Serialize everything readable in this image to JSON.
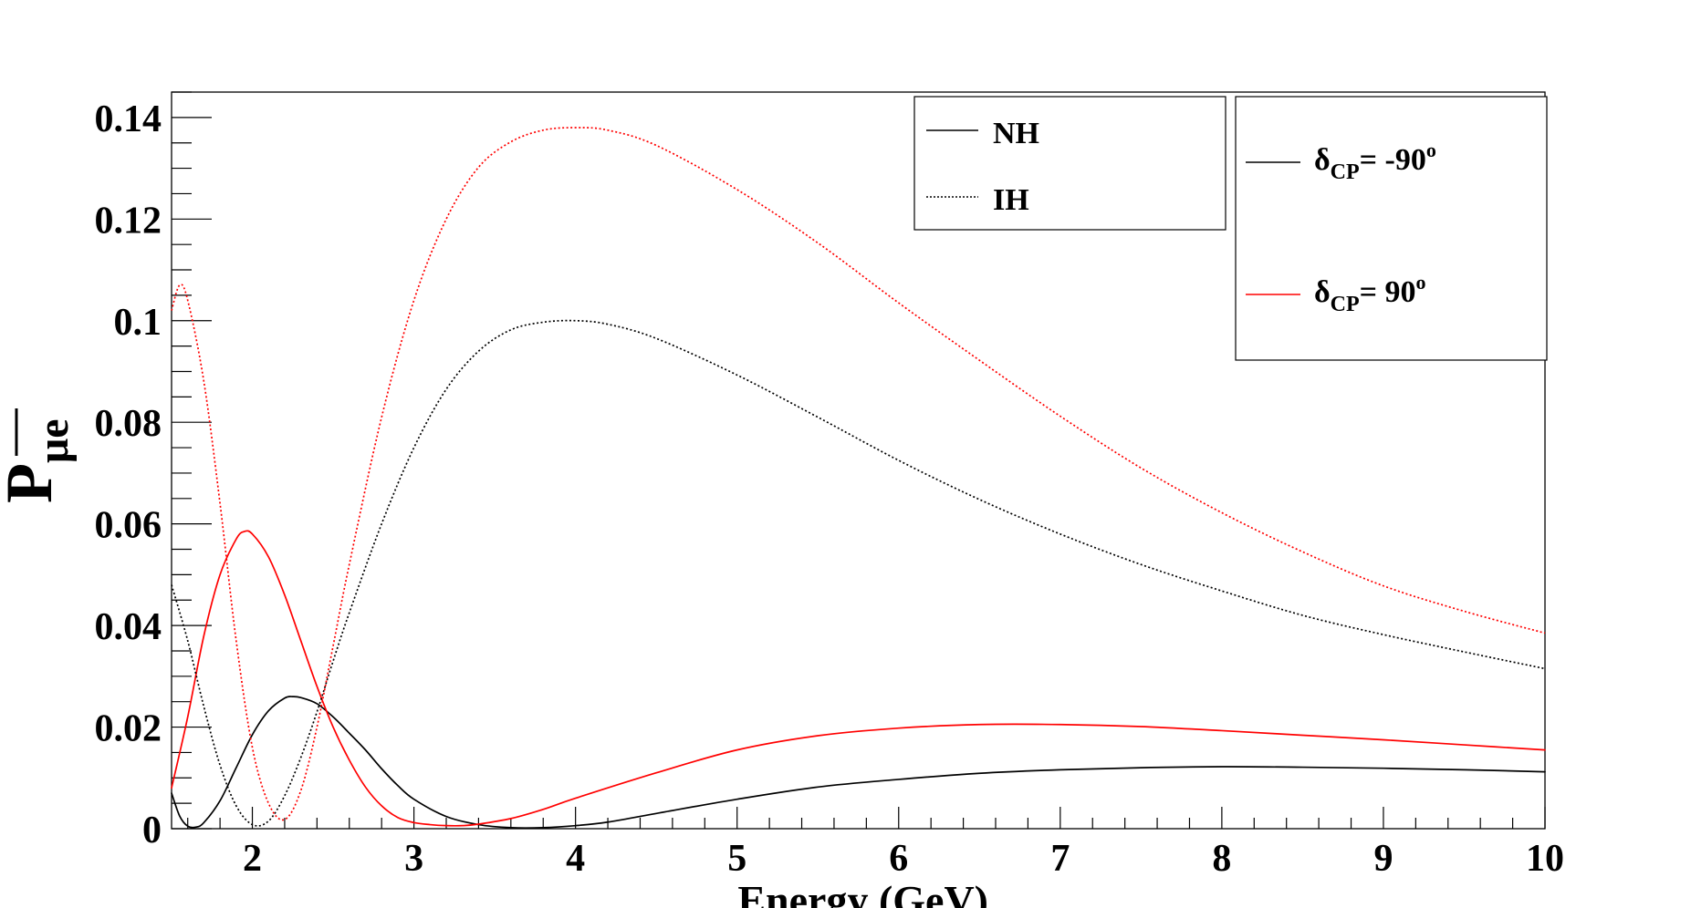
{
  "chart_data": {
    "type": "line",
    "title": "",
    "xlabel": "Energy (GeV)",
    "ylabel": {
      "main": "P",
      "sub": "μe"
    },
    "xlim": [
      1.5,
      10
    ],
    "ylim": [
      0,
      0.145
    ],
    "xticks": [
      2,
      3,
      4,
      5,
      6,
      7,
      8,
      9,
      10
    ],
    "xtick_labels": [
      "2",
      "3",
      "4",
      "5",
      "6",
      "7",
      "8",
      "9",
      "10"
    ],
    "yticks": [
      0,
      0.02,
      0.04,
      0.06,
      0.08,
      0.1,
      0.12,
      0.14
    ],
    "ytick_labels": [
      "0",
      "0.02",
      "0.04",
      "0.06",
      "0.08",
      "0.1",
      "0.12",
      "0.14"
    ],
    "grid": false,
    "legend_hierarchy": {
      "position": "top-center",
      "entries": [
        {
          "label": "NH",
          "style": "solid",
          "color": "#000000"
        },
        {
          "label": "IH",
          "style": "dotted",
          "color": "#000000"
        }
      ]
    },
    "legend_cp": {
      "position": "top-right",
      "entries": [
        {
          "label_main": "δ",
          "label_sub": "CP",
          "label_rest": "= -90",
          "label_sup": "o",
          "style": "solid",
          "color": "#000000"
        },
        {
          "label_main": "δ",
          "label_sub": "CP",
          "label_rest": "= 90",
          "label_sup": "o",
          "style": "solid",
          "color": "#ff0000"
        }
      ]
    },
    "series": [
      {
        "name": "NH δCP=-90",
        "color": "#000000",
        "style": "solid",
        "points": [
          [
            1.5,
            0.007
          ],
          [
            1.55,
            0.0025
          ],
          [
            1.6,
            0.0005
          ],
          [
            1.65,
            0.0003
          ],
          [
            1.7,
            0.0012
          ],
          [
            1.8,
            0.0055
          ],
          [
            1.9,
            0.012
          ],
          [
            2.0,
            0.0185
          ],
          [
            2.1,
            0.0232
          ],
          [
            2.2,
            0.0257
          ],
          [
            2.25,
            0.026
          ],
          [
            2.3,
            0.0258
          ],
          [
            2.4,
            0.0246
          ],
          [
            2.5,
            0.022
          ],
          [
            2.6,
            0.0188
          ],
          [
            2.7,
            0.0155
          ],
          [
            2.8,
            0.0118
          ],
          [
            2.9,
            0.0085
          ],
          [
            3.0,
            0.0058
          ],
          [
            3.2,
            0.0024
          ],
          [
            3.4,
            0.0008
          ],
          [
            3.6,
            0.0002
          ],
          [
            3.8,
            0.0002
          ],
          [
            4.0,
            0.0006
          ],
          [
            4.2,
            0.0013
          ],
          [
            4.5,
            0.003
          ],
          [
            5.0,
            0.0058
          ],
          [
            5.5,
            0.0082
          ],
          [
            6.0,
            0.0097
          ],
          [
            6.5,
            0.0109
          ],
          [
            7.0,
            0.0116
          ],
          [
            7.5,
            0.012
          ],
          [
            8.0,
            0.0122
          ],
          [
            8.5,
            0.0121
          ],
          [
            9.0,
            0.0119
          ],
          [
            9.5,
            0.0116
          ],
          [
            10.0,
            0.0112
          ]
        ]
      },
      {
        "name": "NH δCP=90",
        "color": "#ff0000",
        "style": "solid",
        "points": [
          [
            1.5,
            0.008
          ],
          [
            1.6,
            0.022
          ],
          [
            1.7,
            0.038
          ],
          [
            1.8,
            0.05
          ],
          [
            1.9,
            0.057
          ],
          [
            1.95,
            0.0585
          ],
          [
            2.0,
            0.058
          ],
          [
            2.1,
            0.0535
          ],
          [
            2.2,
            0.046
          ],
          [
            2.3,
            0.037
          ],
          [
            2.4,
            0.028
          ],
          [
            2.5,
            0.02
          ],
          [
            2.6,
            0.0135
          ],
          [
            2.7,
            0.0082
          ],
          [
            2.8,
            0.0045
          ],
          [
            2.9,
            0.0022
          ],
          [
            3.0,
            0.0012
          ],
          [
            3.1,
            0.0008
          ],
          [
            3.2,
            0.0006
          ],
          [
            3.3,
            0.0006
          ],
          [
            3.4,
            0.0009
          ],
          [
            3.6,
            0.002
          ],
          [
            3.8,
            0.0038
          ],
          [
            4.0,
            0.006
          ],
          [
            4.5,
            0.011
          ],
          [
            5.0,
            0.0155
          ],
          [
            5.5,
            0.0183
          ],
          [
            6.0,
            0.0198
          ],
          [
            6.5,
            0.0205
          ],
          [
            7.0,
            0.0205
          ],
          [
            7.5,
            0.0201
          ],
          [
            8.0,
            0.0193
          ],
          [
            8.5,
            0.0184
          ],
          [
            9.0,
            0.0175
          ],
          [
            9.5,
            0.0165
          ],
          [
            10.0,
            0.0155
          ]
        ]
      },
      {
        "name": "IH δCP=-90",
        "color": "#000000",
        "style": "dotted",
        "points": [
          [
            1.5,
            0.048
          ],
          [
            1.6,
            0.037
          ],
          [
            1.7,
            0.024
          ],
          [
            1.8,
            0.0125
          ],
          [
            1.9,
            0.0045
          ],
          [
            2.0,
            0.0008
          ],
          [
            2.1,
            0.0015
          ],
          [
            2.2,
            0.0065
          ],
          [
            2.3,
            0.014
          ],
          [
            2.4,
            0.023
          ],
          [
            2.5,
            0.033
          ],
          [
            2.6,
            0.0425
          ],
          [
            2.8,
            0.06
          ],
          [
            3.0,
            0.075
          ],
          [
            3.2,
            0.0865
          ],
          [
            3.4,
            0.094
          ],
          [
            3.6,
            0.0982
          ],
          [
            3.8,
            0.0997
          ],
          [
            4.0,
            0.1
          ],
          [
            4.2,
            0.0993
          ],
          [
            4.5,
            0.0965
          ],
          [
            5.0,
            0.0893
          ],
          [
            5.5,
            0.081
          ],
          [
            6.0,
            0.0725
          ],
          [
            6.5,
            0.0648
          ],
          [
            7.0,
            0.058
          ],
          [
            7.5,
            0.052
          ],
          [
            8.0,
            0.0468
          ],
          [
            8.5,
            0.042
          ],
          [
            9.0,
            0.0382
          ],
          [
            9.5,
            0.0348
          ],
          [
            10.0,
            0.0315
          ]
        ]
      },
      {
        "name": "IH δCP=90",
        "color": "#ff0000",
        "style": "dotted",
        "points": [
          [
            1.5,
            0.102
          ],
          [
            1.55,
            0.107
          ],
          [
            1.6,
            0.104
          ],
          [
            1.7,
            0.088
          ],
          [
            1.8,
            0.064
          ],
          [
            1.9,
            0.037
          ],
          [
            2.0,
            0.016
          ],
          [
            2.1,
            0.005
          ],
          [
            2.2,
            0.0018
          ],
          [
            2.3,
            0.0075
          ],
          [
            2.4,
            0.02
          ],
          [
            2.5,
            0.036
          ],
          [
            2.6,
            0.052
          ],
          [
            2.8,
            0.081
          ],
          [
            3.0,
            0.104
          ],
          [
            3.2,
            0.12
          ],
          [
            3.4,
            0.1302
          ],
          [
            3.6,
            0.1352
          ],
          [
            3.8,
            0.1375
          ],
          [
            4.0,
            0.138
          ],
          [
            4.2,
            0.1375
          ],
          [
            4.5,
            0.1345
          ],
          [
            5.0,
            0.1258
          ],
          [
            5.5,
            0.1153
          ],
          [
            6.0,
            0.1035
          ],
          [
            6.5,
            0.0922
          ],
          [
            7.0,
            0.0812
          ],
          [
            7.5,
            0.071
          ],
          [
            8.0,
            0.0622
          ],
          [
            8.5,
            0.0545
          ],
          [
            9.0,
            0.0478
          ],
          [
            9.5,
            0.0428
          ],
          [
            10.0,
            0.0385
          ]
        ]
      }
    ]
  }
}
